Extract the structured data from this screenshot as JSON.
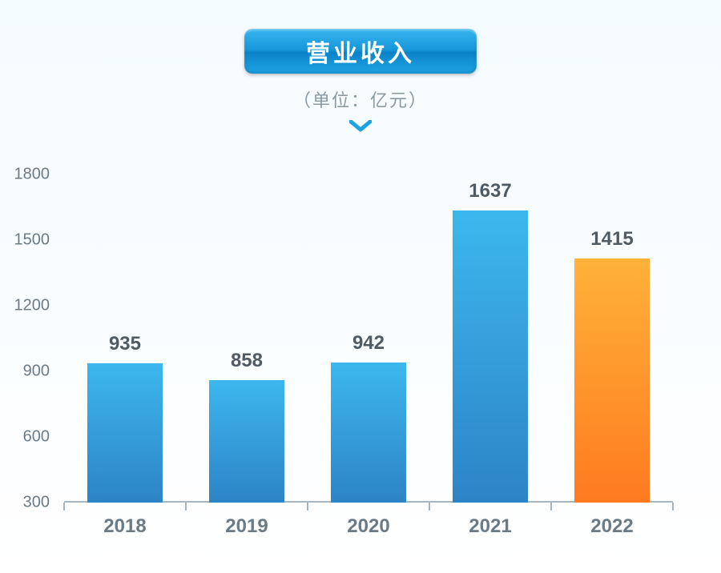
{
  "title": "营业收入",
  "subtitle": "（单位：亿元）",
  "chart": {
    "type": "bar",
    "categories": [
      "2018",
      "2019",
      "2020",
      "2021",
      "2022"
    ],
    "values": [
      935,
      858,
      942,
      1637,
      1415
    ],
    "ylim": [
      300,
      1800
    ],
    "ytick_step": 300,
    "bar_gradient_default": [
      "#3cb7ee",
      "#2d84c6"
    ],
    "bar_gradient_highlight": [
      "#ffb23a",
      "#ff7a1f"
    ],
    "highlight_index": 4,
    "bar_width_ratio": 0.62,
    "value_label_fontsize": 24,
    "axis_label_fontsize": 24,
    "tick_fontsize": 20,
    "title_fontsize": 30,
    "subtitle_fontsize": 22,
    "title_text_color": "#ffffff",
    "subtitle_color": "#8a9aa5",
    "axis_text_color": "#6b7b86",
    "value_text_color": "#4f5b64",
    "axis_line_color": "#a9b6bf",
    "chevron_color": "#1fa3e0",
    "background_gradient": [
      "#f4fbff",
      "#ffffff"
    ]
  }
}
